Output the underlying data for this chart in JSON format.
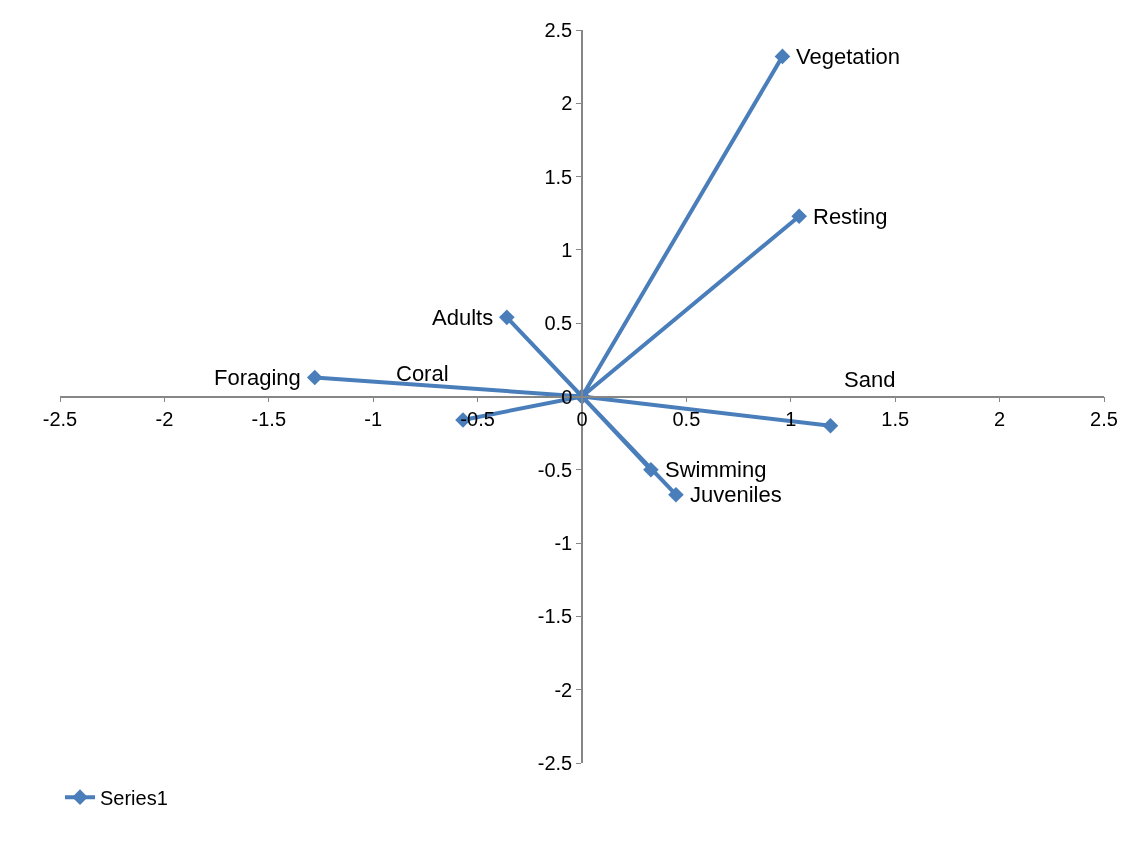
{
  "chart_data": {
    "type": "line",
    "series": [
      {
        "name": "Series1",
        "color": "#4a7ebb",
        "x": [
          0,
          0.96,
          0,
          1.04,
          0,
          -0.36,
          0,
          -1.28,
          0,
          -0.57,
          0,
          1.19,
          0,
          0.33,
          0,
          0.45
        ],
        "values": [
          0,
          2.32,
          0,
          1.23,
          0,
          0.54,
          0,
          0.13,
          0,
          -0.16,
          0,
          -0.2,
          0,
          -0.5,
          0,
          -0.67
        ]
      }
    ],
    "annotations": [
      {
        "text": "Vegetation",
        "x": 0.96,
        "y": 2.32
      },
      {
        "text": "Resting",
        "x": 1.04,
        "y": 1.23
      },
      {
        "text": "Adults",
        "x": -0.36,
        "y": 0.54
      },
      {
        "text": "Foraging",
        "x": -1.28,
        "y": 0.13
      },
      {
        "text": "Coral",
        "x": -0.57,
        "y": -0.16
      },
      {
        "text": "Sand",
        "x": 1.19,
        "y": -0.2
      },
      {
        "text": "Swimming",
        "x": 0.33,
        "y": -0.5
      },
      {
        "text": "Juveniles",
        "x": 0.45,
        "y": -0.67
      }
    ],
    "xlim": [
      -2.5,
      2.5
    ],
    "xticks": [
      -2.5,
      -2,
      -1.5,
      -1,
      -0.5,
      0,
      0.5,
      1,
      1.5,
      2,
      2.5
    ],
    "ylim": [
      -2.5,
      2.5
    ],
    "yticks": [
      -2.5,
      -2,
      -1.5,
      -1,
      -0.5,
      0,
      0.5,
      1,
      1.5,
      2,
      2.5
    ],
    "legend": "bottom",
    "marker": "diamond",
    "line_style": "solid"
  }
}
